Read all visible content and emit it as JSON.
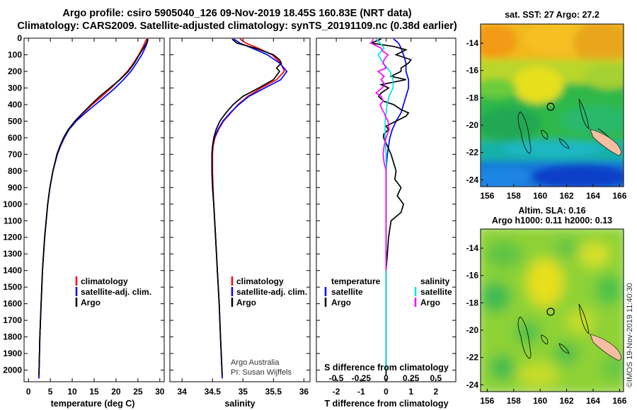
{
  "title_line1": "Argo profile: csiro 5905040_126 09-Nov-2019 18.45S 160.83E (NRT data)",
  "title_line2": "Climatology: CARS2009. Satellite-adjusted climatology: synTS_20191109.nc (0.38d earlier)",
  "colors": {
    "argo": "#000000",
    "climatology": "#ff0000",
    "satellite": "#0000ff",
    "sat_salinity": "#00e5e5",
    "argo_salinity": "#ff00ff"
  },
  "chart_data": [
    {
      "type": "line",
      "name": "temperature-profile",
      "xlabel": "temperature (deg C)",
      "ylabel": "depth",
      "xlim": [
        -1,
        31
      ],
      "ylim": [
        2070,
        0
      ],
      "xticks": [
        0,
        5,
        10,
        15,
        20,
        25,
        30
      ],
      "yticks": [
        0,
        100,
        200,
        300,
        400,
        500,
        600,
        700,
        800,
        900,
        1000,
        1100,
        1200,
        1300,
        1400,
        1500,
        1600,
        1700,
        1800,
        1900,
        2000
      ],
      "legend": [
        "climatology",
        "satellite-adj. clim.",
        "Argo"
      ],
      "series": [
        {
          "name": "climatology",
          "color": "#ff0000",
          "depth": [
            5,
            20,
            50,
            100,
            150,
            200,
            250,
            300,
            350,
            400,
            450,
            500,
            550,
            600,
            650,
            700,
            800,
            900,
            1000,
            1200,
            1400,
            1600,
            1800,
            2050
          ],
          "values": [
            27.0,
            26.7,
            26.2,
            25.2,
            24.0,
            22.6,
            20.8,
            18.9,
            16.8,
            14.6,
            12.5,
            10.6,
            9.2,
            8.2,
            7.3,
            6.6,
            5.6,
            4.9,
            4.4,
            3.7,
            3.2,
            2.9,
            2.6,
            2.4
          ]
        },
        {
          "name": "satellite-adj. clim.",
          "color": "#0000ff",
          "depth": [
            5,
            20,
            50,
            100,
            150,
            200,
            250,
            300,
            350,
            400,
            450,
            500,
            550,
            600,
            650,
            700,
            800,
            900,
            1000,
            1200,
            1400,
            1600,
            1800,
            2050
          ],
          "values": [
            27.3,
            27.2,
            26.8,
            25.9,
            24.7,
            23.4,
            21.7,
            19.8,
            17.6,
            15.3,
            13.0,
            10.9,
            9.3,
            8.2,
            7.3,
            6.6,
            5.6,
            4.9,
            4.4,
            3.7,
            3.2,
            2.9,
            2.6,
            2.4
          ]
        },
        {
          "name": "Argo",
          "color": "#000000",
          "depth": [
            5,
            20,
            50,
            100,
            150,
            200,
            250,
            300,
            350,
            400,
            450,
            500,
            550,
            600,
            650,
            700,
            800,
            900,
            1000,
            1200,
            1400,
            1600,
            1800,
            2030
          ],
          "values": [
            27.2,
            27.1,
            26.5,
            25.3,
            24.2,
            22.8,
            20.9,
            18.6,
            16.3,
            14.3,
            12.4,
            10.6,
            9.1,
            8.0,
            7.2,
            6.5,
            5.6,
            4.9,
            4.4,
            3.7,
            3.2,
            2.9,
            2.6,
            2.4
          ]
        }
      ]
    },
    {
      "type": "line",
      "name": "salinity-profile",
      "xlabel": "salinity",
      "ylabel": "depth",
      "xlim": [
        33.8,
        36.1
      ],
      "ylim": [
        2070,
        0
      ],
      "xticks": [
        34,
        34.5,
        35,
        35.5,
        36
      ],
      "xticklabels": [
        "34",
        "34.5",
        "35",
        "35.5",
        "36"
      ],
      "legend": [
        "climatology",
        "satellite-adj. clim.",
        "Argo"
      ],
      "credit_line1": "Argo Australia",
      "credit_line2": "PI: Susan Wijffels",
      "series": [
        {
          "name": "climatology",
          "color": "#ff0000",
          "depth": [
            5,
            30,
            60,
            100,
            150,
            200,
            250,
            300,
            350,
            400,
            450,
            500,
            550,
            600,
            650,
            700,
            800,
            900,
            1000,
            1200,
            1400,
            1600,
            1800,
            2050
          ],
          "values": [
            34.95,
            35.05,
            35.25,
            35.48,
            35.62,
            35.68,
            35.55,
            35.3,
            35.08,
            34.92,
            34.8,
            34.68,
            34.6,
            34.54,
            34.51,
            34.5,
            34.5,
            34.51,
            34.52,
            34.55,
            34.58,
            34.61,
            34.63,
            34.66
          ]
        },
        {
          "name": "satellite-adj. clim.",
          "color": "#0000ff",
          "depth": [
            5,
            30,
            60,
            100,
            150,
            200,
            250,
            300,
            350,
            400,
            450,
            500,
            550,
            600,
            650,
            700,
            800,
            900,
            1000,
            1200,
            1400,
            1600,
            1800,
            2050
          ],
          "values": [
            34.85,
            34.95,
            35.15,
            35.4,
            35.6,
            35.72,
            35.62,
            35.36,
            35.1,
            34.93,
            34.79,
            34.67,
            34.59,
            34.53,
            34.5,
            34.49,
            34.49,
            34.5,
            34.52,
            34.55,
            34.58,
            34.61,
            34.63,
            34.66
          ]
        },
        {
          "name": "Argo",
          "color": "#000000",
          "depth": [
            5,
            30,
            60,
            100,
            130,
            150,
            180,
            200,
            250,
            300,
            350,
            400,
            450,
            500,
            550,
            600,
            650,
            700,
            800,
            900,
            1000,
            1200,
            1400,
            1600,
            1800,
            2030
          ],
          "values": [
            34.82,
            34.9,
            35.2,
            35.5,
            35.6,
            35.63,
            35.55,
            35.6,
            35.5,
            35.26,
            35.0,
            34.84,
            34.72,
            34.62,
            34.56,
            34.52,
            34.5,
            34.49,
            34.49,
            34.5,
            34.52,
            34.55,
            34.58,
            34.61,
            34.63,
            34.66
          ]
        }
      ]
    },
    {
      "type": "line",
      "name": "difference-profile",
      "xlabel": "T difference from climatology",
      "xlabel_top": "S difference from climatology",
      "xlim": [
        -2.8,
        2.8
      ],
      "ylim": [
        2070,
        0
      ],
      "xticks": [
        -2,
        -1,
        0,
        1,
        2
      ],
      "xticks_S": [
        -0.5,
        -0.25,
        0,
        0.25,
        0.5
      ],
      "xticklabels_S": [
        "-0.5",
        "-0.25",
        "0",
        "0.25",
        "0.5"
      ],
      "legend_temperature_title": "temperature",
      "legend_salinity_title": "salinity",
      "legend_temperature": [
        "satellite",
        "Argo"
      ],
      "legend_salinity": [
        "satellite",
        "Argo"
      ],
      "series": [
        {
          "name": "T satellite",
          "color": "#0000ff",
          "depth": [
            5,
            30,
            60,
            100,
            150,
            200,
            250,
            300,
            350,
            400,
            450,
            500,
            550,
            600,
            650,
            700,
            750,
            800,
            1000,
            1400,
            2000
          ],
          "values": [
            0.3,
            0.5,
            0.6,
            0.7,
            0.8,
            0.8,
            0.9,
            0.9,
            0.8,
            0.7,
            0.6,
            0.4,
            0.25,
            0.15,
            0.1,
            0.05,
            0.02,
            0.0,
            0.0,
            0.0,
            0.0
          ]
        },
        {
          "name": "T Argo",
          "color": "#000000",
          "depth": [
            5,
            30,
            50,
            70,
            100,
            130,
            150,
            180,
            200,
            230,
            250,
            280,
            300,
            330,
            350,
            380,
            400,
            430,
            450,
            470,
            500,
            530,
            550,
            580,
            600,
            650,
            700,
            750,
            800,
            850,
            900,
            950,
            1000,
            1050,
            1100,
            1200,
            1300,
            1400,
            1500,
            1600,
            1800,
            2000,
            2030
          ],
          "values": [
            -0.2,
            -0.6,
            0.3,
            0.8,
            0.4,
            1.0,
            0.9,
            0.6,
            0.6,
            0.2,
            0.8,
            -0.2,
            0.1,
            -0.2,
            -0.3,
            -0.1,
            0.3,
            0.6,
            0.9,
            0.8,
            0.4,
            0.0,
            0.1,
            -0.1,
            -0.1,
            0.05,
            0.2,
            0.3,
            0.4,
            0.35,
            0.6,
            0.45,
            0.7,
            0.6,
            0.2,
            0.1,
            0.05,
            0.0,
            0.0,
            0.0,
            0.0,
            0.0,
            0.0
          ]
        },
        {
          "name": "S satellite",
          "color": "#00e5e5",
          "depth": [
            5,
            30,
            60,
            100,
            150,
            200,
            250,
            300,
            350,
            400,
            450,
            500,
            600,
            700,
            800,
            1000,
            1400,
            2000
          ],
          "values": [
            -0.1,
            -0.06,
            -0.02,
            -0.08,
            -0.03,
            0.04,
            0.07,
            0.07,
            0.03,
            0.01,
            0.0,
            -0.01,
            -0.01,
            0.0,
            0.0,
            0.0,
            0.0,
            0.0
          ]
        },
        {
          "name": "S Argo",
          "color": "#ff00ff",
          "depth": [
            5,
            30,
            60,
            80,
            100,
            130,
            150,
            180,
            200,
            230,
            250,
            280,
            300,
            330,
            350,
            380,
            400,
            430,
            450,
            480,
            500,
            550,
            600,
            650,
            700,
            750,
            800,
            1000,
            1200,
            1400
          ],
          "values": [
            -0.13,
            -0.15,
            -0.05,
            -0.03,
            0.02,
            -0.02,
            -0.03,
            0.0,
            -0.08,
            -0.02,
            -0.05,
            -0.01,
            -0.04,
            -0.1,
            -0.05,
            -0.03,
            -0.06,
            -0.04,
            -0.02,
            0.0,
            0.02,
            0.03,
            0.0,
            -0.02,
            -0.03,
            -0.02,
            0.0,
            0.0,
            0.0,
            0.0
          ]
        }
      ]
    },
    {
      "type": "heatmap",
      "name": "sst-map",
      "title": "sat. SST: 27  Argo: 27.2",
      "xlim": [
        155.5,
        166.3
      ],
      "ylim": [
        -24.5,
        -12.6
      ],
      "xticks": [
        156,
        158,
        160,
        162,
        164,
        166
      ],
      "yticks": [
        -14,
        -16,
        -18,
        -20,
        -22,
        -24
      ],
      "float_position": [
        160.83,
        -18.45
      ]
    },
    {
      "type": "heatmap",
      "name": "sla-map",
      "title_line1": "Altim. SLA: 0.16",
      "title_line2": "Argo h1000: 0.11  h2000: 0.13",
      "xlim": [
        155.5,
        166.3
      ],
      "ylim": [
        -24.5,
        -12.6
      ],
      "xticks": [
        156,
        158,
        160,
        162,
        164,
        166
      ],
      "yticks": [
        -14,
        -16,
        -18,
        -20,
        -22,
        -24
      ],
      "float_position": [
        160.83,
        -18.45
      ]
    }
  ],
  "footer_stamp": "©IMOS 19-Nov-2019 11:40:30"
}
